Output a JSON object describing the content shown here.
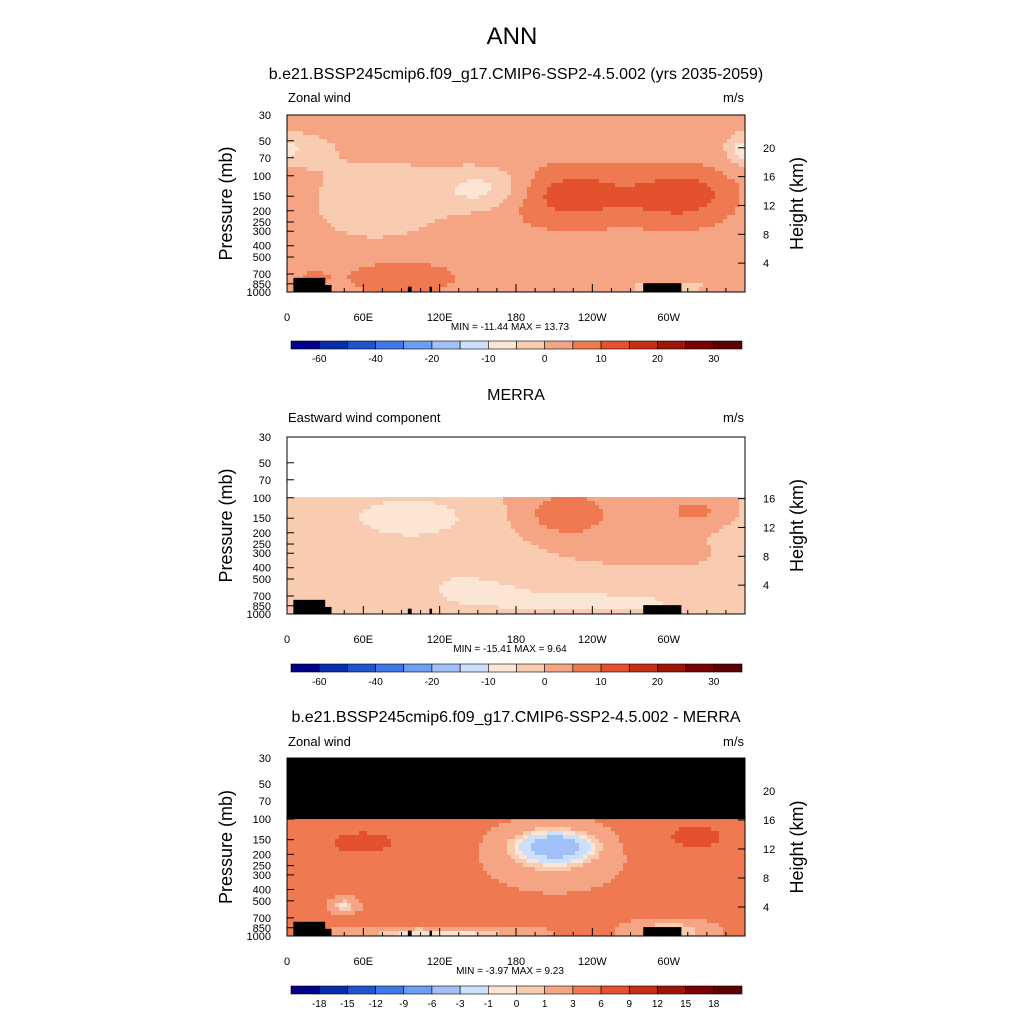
{
  "figure": {
    "title": "ANN"
  },
  "chart_data": [
    {
      "type": "heatmap",
      "title": "b.e21.BSSP245cmip6.f09_g17.CMIP6-SSP2-4.5.002 (yrs 2035-2059)",
      "left_label": "Zonal wind",
      "units": "m/s",
      "xlabel": "",
      "ylabel": "Pressure (mb)",
      "ylabel_right": "Height (km)",
      "x_ticks": [
        "0",
        "60E",
        "120E",
        "180",
        "120W",
        "60W"
      ],
      "x_tick_lon": [
        0,
        60,
        120,
        180,
        240,
        300
      ],
      "xlim": [
        0,
        360
      ],
      "y_ticks": [
        "30",
        "50",
        "70",
        "100",
        "150",
        "200",
        "250",
        "300",
        "400",
        "500",
        "700",
        "850",
        "1000"
      ],
      "y_tick_values": [
        30,
        50,
        70,
        100,
        150,
        200,
        250,
        300,
        400,
        500,
        700,
        850,
        1000
      ],
      "y_scale": "log",
      "ylim": [
        1000,
        30
      ],
      "right_ticks": [
        "20",
        "16",
        "12",
        "8",
        "4"
      ],
      "right_tick_km": [
        20,
        16,
        12,
        8,
        4
      ],
      "data_ptop": 30,
      "min_max_text": "MIN = -11.44  MAX =  13.73",
      "min": -11.44,
      "max": 13.73,
      "levels": [
        -70,
        -60,
        -50,
        -40,
        -30,
        -20,
        -15,
        -10,
        -5,
        0,
        5,
        10,
        15,
        20,
        25,
        30,
        35
      ],
      "colorbar_labels": [
        "-60",
        "-40",
        "-20",
        "-10",
        "0",
        "10",
        "20",
        "30"
      ],
      "colorbar_label_pos": [
        1,
        3,
        5,
        7,
        9,
        11,
        13,
        15
      ],
      "features": [
        {
          "lon": 155,
          "p": 130,
          "dlon": 36,
          "dlogp": 0.18,
          "amp": -9.5
        },
        {
          "lon": 70,
          "p": 160,
          "dlon": 55,
          "dlogp": 0.35,
          "amp": -6
        },
        {
          "lon": 10,
          "p": 60,
          "dlon": 25,
          "dlogp": 0.15,
          "amp": -6
        },
        {
          "lon": 357,
          "p": 60,
          "dlon": 10,
          "dlogp": 0.12,
          "amp": -5
        },
        {
          "lon": 222,
          "p": 150,
          "dlon": 50,
          "dlogp": 0.25,
          "amp": 10
        },
        {
          "lon": 310,
          "p": 150,
          "dlon": 45,
          "dlogp": 0.25,
          "amp": 10
        },
        {
          "lon": 230,
          "p": 140,
          "dlon": 18,
          "dlogp": 0.08,
          "amp": 3.7
        },
        {
          "lon": 312,
          "p": 140,
          "dlon": 18,
          "dlogp": 0.09,
          "amp": 3.7
        },
        {
          "lon": 90,
          "p": 750,
          "dlon": 45,
          "dlogp": 0.15,
          "amp": 6
        },
        {
          "lon": 300,
          "p": 900,
          "dlon": 30,
          "dlogp": 0.05,
          "amp": -6
        },
        {
          "lon": 20,
          "p": 750,
          "dlon": 15,
          "dlogp": 0.1,
          "amp": 3
        }
      ],
      "base": 2.5
    },
    {
      "type": "heatmap",
      "title": "MERRA",
      "left_label": "Eastward wind component",
      "units": "m/s",
      "xlabel": "",
      "ylabel": "Pressure (mb)",
      "ylabel_right": "Height (km)",
      "x_ticks": [
        "0",
        "60E",
        "120E",
        "180",
        "120W",
        "60W"
      ],
      "x_tick_lon": [
        0,
        60,
        120,
        180,
        240,
        300
      ],
      "xlim": [
        0,
        360
      ],
      "y_ticks": [
        "30",
        "50",
        "70",
        "100",
        "150",
        "200",
        "250",
        "300",
        "400",
        "500",
        "700",
        "850",
        "1000"
      ],
      "y_tick_values": [
        30,
        50,
        70,
        100,
        150,
        200,
        250,
        300,
        400,
        500,
        700,
        850,
        1000
      ],
      "y_scale": "log",
      "ylim": [
        1000,
        30
      ],
      "right_ticks": [
        "16",
        "12",
        "8",
        "4"
      ],
      "right_tick_km": [
        16,
        12,
        8,
        4
      ],
      "data_ptop": 100,
      "min_max_text": "MIN = -15.41  MAX =   9.64",
      "min": -15.41,
      "max": 9.64,
      "levels": [
        -70,
        -60,
        -50,
        -40,
        -30,
        -20,
        -15,
        -10,
        -5,
        0,
        5,
        10,
        15,
        20,
        25,
        30,
        35
      ],
      "colorbar_labels": [
        "-60",
        "-40",
        "-20",
        "-10",
        "0",
        "10",
        "20",
        "30"
      ],
      "colorbar_label_pos": [
        1,
        3,
        5,
        7,
        9,
        11,
        13,
        15
      ],
      "features": [
        {
          "lon": 95,
          "p": 140,
          "dlon": 38,
          "dlogp": 0.14,
          "amp": -7
        },
        {
          "lon": 100,
          "p": 200,
          "dlon": 90,
          "dlogp": 0.4,
          "amp": -4
        },
        {
          "lon": 140,
          "p": 600,
          "dlon": 60,
          "dlogp": 0.25,
          "amp": -4
        },
        {
          "lon": 260,
          "p": 800,
          "dlon": 120,
          "dlogp": 0.2,
          "amp": -6
        },
        {
          "lon": 220,
          "p": 140,
          "dlon": 35,
          "dlogp": 0.2,
          "amp": 9
        },
        {
          "lon": 320,
          "p": 130,
          "dlon": 20,
          "dlogp": 0.1,
          "amp": 7
        }
      ],
      "base": 0.5
    },
    {
      "type": "heatmap",
      "title": "b.e21.BSSP245cmip6.f09_g17.CMIP6-SSP2-4.5.002 - MERRA",
      "left_label": "Zonal wind",
      "units": "m/s",
      "xlabel": "",
      "ylabel": "Pressure (mb)",
      "ylabel_right": "Height (km)",
      "x_ticks": [
        "0",
        "60E",
        "120E",
        "180",
        "120W",
        "60W"
      ],
      "x_tick_lon": [
        0,
        60,
        120,
        180,
        240,
        300
      ],
      "xlim": [
        0,
        360
      ],
      "y_ticks": [
        "30",
        "50",
        "70",
        "100",
        "150",
        "200",
        "250",
        "300",
        "400",
        "500",
        "700",
        "850",
        "1000"
      ],
      "y_tick_values": [
        30,
        50,
        70,
        100,
        150,
        200,
        250,
        300,
        400,
        500,
        700,
        850,
        1000
      ],
      "y_scale": "log",
      "ylim": [
        1000,
        30
      ],
      "right_ticks": [
        "20",
        "16",
        "12",
        "8",
        "4"
      ],
      "right_tick_km": [
        20,
        16,
        12,
        8,
        4
      ],
      "data_ptop": 100,
      "min_max_text": "MIN =  -3.97  MAX =   9.23",
      "min": -3.97,
      "max": 9.23,
      "levels": [
        -21,
        -18,
        -15,
        -12,
        -9,
        -6,
        -3,
        -1,
        0,
        1,
        3,
        6,
        9,
        12,
        15,
        18,
        21
      ],
      "colorbar_labels": [
        "-18",
        "-15",
        "-12",
        "-9",
        "-6",
        "-3",
        "-1",
        "0",
        "1",
        "3",
        "6",
        "9",
        "12",
        "15",
        "18"
      ],
      "colorbar_label_pos": [
        1,
        2,
        3,
        4,
        5,
        6,
        7,
        8,
        9,
        10,
        11,
        12,
        13,
        14,
        15
      ],
      "features": [
        {
          "lon": 210,
          "p": 170,
          "dlon": 28,
          "dlogp": 0.12,
          "amp": -7
        },
        {
          "lon": 210,
          "p": 200,
          "dlon": 45,
          "dlogp": 0.25,
          "amp": -3
        },
        {
          "lon": 60,
          "p": 160,
          "dlon": 50,
          "dlogp": 0.2,
          "amp": 3
        },
        {
          "lon": 320,
          "p": 140,
          "dlon": 40,
          "dlogp": 0.2,
          "amp": 3
        },
        {
          "lon": 125,
          "p": 720,
          "dlon": 35,
          "dlogp": 0.12,
          "amp": 2
        },
        {
          "lon": 120,
          "p": 930,
          "dlon": 60,
          "dlogp": 0.05,
          "amp": -5
        },
        {
          "lon": 300,
          "p": 900,
          "dlon": 30,
          "dlogp": 0.08,
          "amp": -4
        },
        {
          "lon": 45,
          "p": 550,
          "dlon": 10,
          "dlogp": 0.06,
          "amp": -4
        }
      ],
      "base": 3.5
    }
  ],
  "palette": [
    "#00008b",
    "#0a2dab",
    "#1f54cf",
    "#3c78e8",
    "#6d9ef3",
    "#a2c0f8",
    "#cde0fb",
    "#fbe6d6",
    "#f9cbb0",
    "#f5a583",
    "#ef7a52",
    "#e4512d",
    "#c72f15",
    "#9c1608",
    "#780000",
    "#5e0000"
  ]
}
